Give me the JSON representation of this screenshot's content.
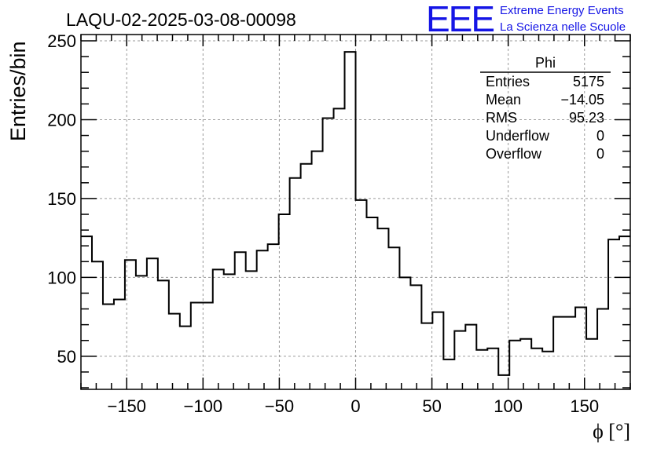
{
  "logo": {
    "mark": "EEE",
    "line1": "Extreme Energy Events",
    "line2": "La Scienza nelle Scuole",
    "color": "#1515e6"
  },
  "chart_data": {
    "type": "bar",
    "title": "LAQU-02-2025-03-08-00098",
    "xlabel": "ϕ [°]",
    "ylabel": "Entries/bin",
    "xlim": [
      -180,
      180
    ],
    "ylim": [
      29,
      254
    ],
    "grid": true,
    "bin_width": 7.2,
    "xticks": [
      -150,
      -100,
      -50,
      0,
      50,
      100,
      150
    ],
    "xtick_labels": [
      "−150",
      "−100",
      "−50",
      "0",
      "50",
      "100",
      "150"
    ],
    "yticks": [
      50,
      100,
      150,
      200,
      250
    ],
    "ytick_labels": [
      "50",
      "100",
      "150",
      "200",
      "250"
    ],
    "values": [
      126,
      110,
      83,
      86,
      111,
      101,
      112,
      98,
      77,
      69,
      84,
      84,
      105,
      102,
      116,
      104,
      117,
      121,
      140,
      163,
      172,
      180,
      201,
      207,
      243,
      149,
      138,
      131,
      119,
      100,
      95,
      71,
      78,
      48,
      66,
      70,
      54,
      55,
      38,
      60,
      61,
      55,
      53,
      75,
      75,
      81,
      61,
      80,
      124,
      126
    ],
    "stats": {
      "name": "Phi",
      "rows": [
        {
          "label": "Entries",
          "value": "5175"
        },
        {
          "label": "Mean",
          "value": "−14.05"
        },
        {
          "label": "RMS",
          "value": "95.23"
        },
        {
          "label": "Underflow",
          "value": "0"
        },
        {
          "label": "Overflow",
          "value": "0"
        }
      ]
    }
  }
}
